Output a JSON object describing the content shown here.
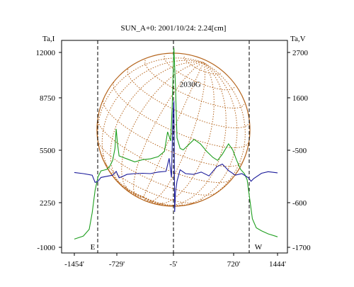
{
  "colors": {
    "background": "#ffffff",
    "frame": "#000000",
    "disk_grid": "#b5651d",
    "series_I": "#1e9e1e",
    "series_V": "#1a1a9a",
    "marker_lines": "#000000"
  },
  "chart_data": {
    "type": "line",
    "title": "SUN_A+0: 2001/10/24: 2.24[cm]",
    "left_axis": {
      "label": "Ta,I",
      "range": [
        -1000,
        13000
      ],
      "ticks": [
        -1000,
        2250,
        5500,
        8750,
        12000
      ],
      "tick_labels": [
        "-1000",
        "2250",
        "5500",
        "8750",
        "12000"
      ]
    },
    "right_axis": {
      "label": "Ta,V",
      "range": [
        -1700,
        3100
      ],
      "ticks": [
        -1700,
        -600,
        -500,
        1600,
        2700
      ],
      "tick_labels": [
        "-1700",
        "-600",
        "-500",
        "1600",
        "2700"
      ]
    },
    "x_axis": {
      "range": [
        -1454,
        1444
      ],
      "ticks": [
        -1454,
        -729,
        -5,
        720,
        1444
      ],
      "tick_labels": [
        "-1454'",
        "-729'",
        "-5'",
        "720'",
        "1444'"
      ]
    },
    "markers": [
      {
        "x": -1080,
        "label": "E"
      },
      {
        "x": -5,
        "label": ""
      },
      {
        "x": 1035,
        "label": "W"
      }
    ],
    "annotation": {
      "text": "2030G",
      "x": 210,
      "y": 9700
    },
    "disk": {
      "center_x": -5,
      "radius_arcmin": 960,
      "grid": true
    },
    "series": [
      {
        "axis": "left",
        "color": "#1e9e1e",
        "x": [
          -1454,
          -1300,
          -1200,
          -1150,
          -1100,
          -1050,
          -1000,
          -950,
          -900,
          -850,
          -800,
          -760,
          -740,
          -720,
          -700,
          -650,
          -600,
          -500,
          -400,
          -300,
          -200,
          -120,
          -80,
          -40,
          -20,
          0,
          20,
          40,
          80,
          120,
          180,
          260,
          340,
          420,
          500,
          560,
          620,
          700,
          760,
          820,
          880,
          940,
          980,
          1020,
          1060,
          1120,
          1200,
          1300,
          1444
        ],
        "y": [
          -450,
          -250,
          200,
          1300,
          2800,
          3700,
          4100,
          4150,
          4200,
          4400,
          4800,
          5600,
          6900,
          5900,
          5100,
          5000,
          4900,
          4700,
          4850,
          4900,
          5050,
          5400,
          6700,
          6100,
          8500,
          12300,
          9800,
          6300,
          5600,
          5500,
          5800,
          6200,
          5900,
          5400,
          5000,
          4800,
          5200,
          5900,
          5500,
          4800,
          4200,
          3900,
          3500,
          2200,
          900,
          300,
          100,
          -100,
          -300
        ]
      },
      {
        "axis": "right",
        "color": "#1a1a9a",
        "x": [
          -1454,
          -1300,
          -1150,
          -1100,
          -1050,
          -1000,
          -900,
          -800,
          -740,
          -700,
          -650,
          -600,
          -500,
          -400,
          -300,
          -200,
          -100,
          -60,
          -30,
          -10,
          0,
          10,
          20,
          40,
          80,
          150,
          250,
          350,
          450,
          550,
          620,
          700,
          800,
          900,
          1000,
          1040,
          1080,
          1200,
          1300,
          1444
        ],
        "y": [
          30,
          0,
          -40,
          -230,
          -200,
          -100,
          -70,
          -40,
          60,
          -110,
          -70,
          -20,
          0,
          10,
          0,
          40,
          60,
          400,
          -100,
          1600,
          1900,
          -1000,
          -500,
          -200,
          100,
          0,
          -20,
          40,
          -60,
          180,
          250,
          80,
          -40,
          0,
          -110,
          -200,
          -130,
          10,
          50,
          20
        ]
      }
    ]
  }
}
